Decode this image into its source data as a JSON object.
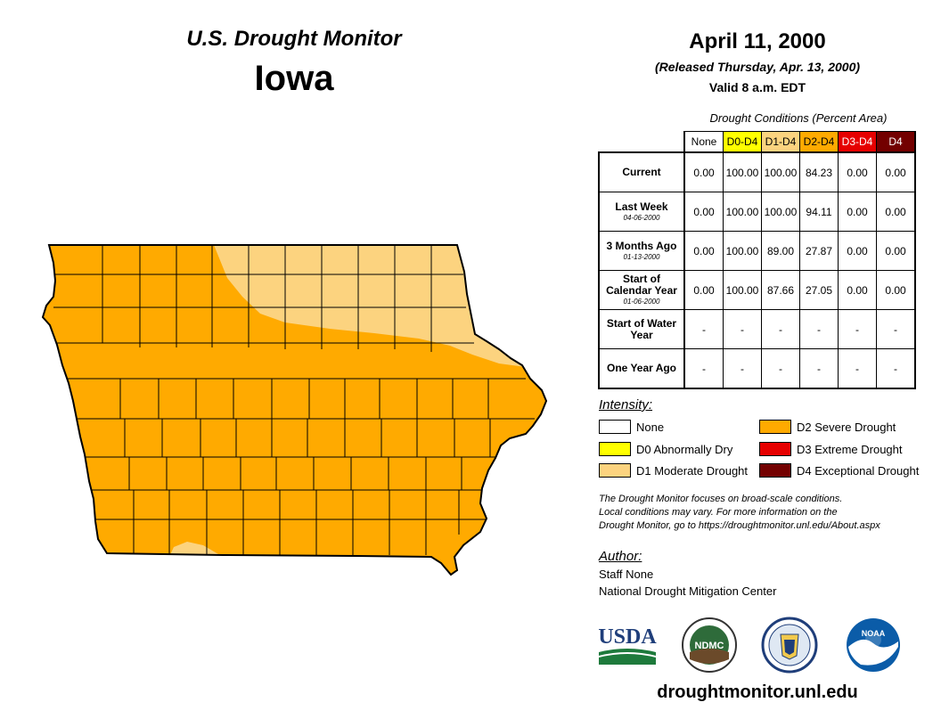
{
  "header": {
    "map_title": "U.S. Drought Monitor",
    "state": "Iowa",
    "date": "April 11, 2000",
    "released": "(Released Thursday, Apr. 13, 2000)",
    "valid": "Valid 8 a.m. EDT"
  },
  "conditions": {
    "title": "Drought Conditions (Percent Area)",
    "columns": [
      "None",
      "D0-D4",
      "D1-D4",
      "D2-D4",
      "D3-D4",
      "D4"
    ],
    "rows": [
      {
        "label": "Current",
        "sub": "",
        "values": [
          "0.00",
          "100.00",
          "100.00",
          "84.23",
          "0.00",
          "0.00"
        ]
      },
      {
        "label": "Last Week",
        "sub": "04-06-2000",
        "values": [
          "0.00",
          "100.00",
          "100.00",
          "94.11",
          "0.00",
          "0.00"
        ]
      },
      {
        "label": "3 Months Ago",
        "sub": "01-13-2000",
        "values": [
          "0.00",
          "100.00",
          "89.00",
          "27.87",
          "0.00",
          "0.00"
        ]
      },
      {
        "label": "Start of Calendar Year",
        "sub": "01-06-2000",
        "values": [
          "0.00",
          "100.00",
          "87.66",
          "27.05",
          "0.00",
          "0.00"
        ]
      },
      {
        "label": "Start of Water Year",
        "sub": "",
        "values": [
          "-",
          "-",
          "-",
          "-",
          "-",
          "-"
        ]
      },
      {
        "label": "One Year Ago",
        "sub": "",
        "values": [
          "-",
          "-",
          "-",
          "-",
          "-",
          "-"
        ]
      }
    ]
  },
  "colors": {
    "none": "#ffffff",
    "d0": "#ffff00",
    "d1": "#fcd37f",
    "d2": "#ffaa00",
    "d3": "#e60000",
    "d4": "#730000"
  },
  "legend": {
    "title": "Intensity:",
    "items": [
      {
        "label": "None",
        "color": "#ffffff"
      },
      {
        "label": "D0 Abnormally Dry",
        "color": "#ffff00"
      },
      {
        "label": "D1 Moderate Drought",
        "color": "#fcd37f"
      },
      {
        "label": "D2 Severe Drought",
        "color": "#ffaa00"
      },
      {
        "label": "D3 Extreme Drought",
        "color": "#e60000"
      },
      {
        "label": "D4 Exceptional Drought",
        "color": "#730000"
      }
    ]
  },
  "note": {
    "line1": "The Drought Monitor focuses on broad-scale conditions.",
    "line2": "Local conditions may vary. For more information on the",
    "line3": "Drought Monitor, go to https://droughtmonitor.unl.edu/About.aspx"
  },
  "author": {
    "title": "Author:",
    "name": "Staff None",
    "org": "National Drought Mitigation Center"
  },
  "logos": {
    "usda": "USDA",
    "ndmc": "NDMC",
    "noaa": "NOAA"
  },
  "website": "droughtmonitor.unl.edu"
}
